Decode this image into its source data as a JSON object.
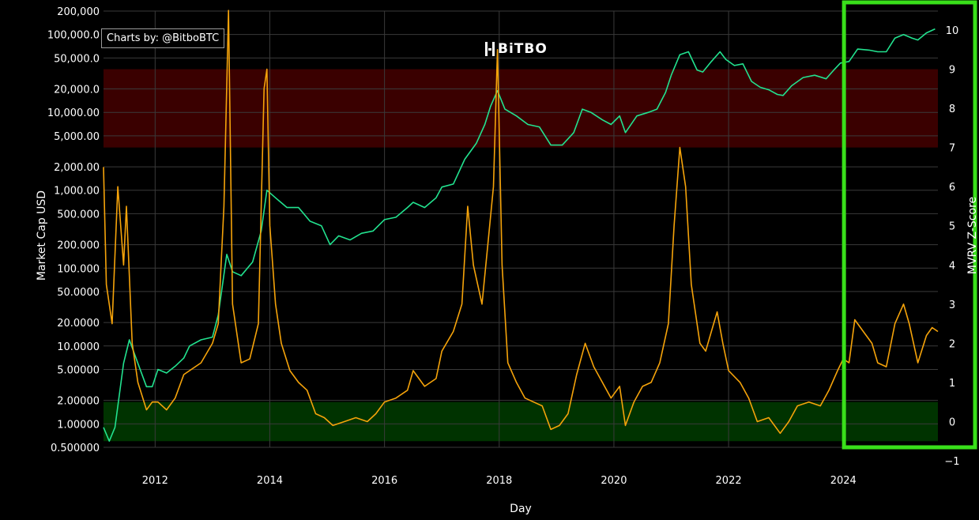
{
  "watermark": "Charts by: @BitboBTC",
  "brand": "BiTBO",
  "chart_data": {
    "type": "line",
    "xlabel": "Day",
    "ylabel_left": "Market Cap USD",
    "ylabel_right": "MVRV Z-Score",
    "y_left_scale": "log",
    "y_left_ticks": [
      "200,000",
      "100,000.0",
      "50,000.0",
      "20,000.0",
      "10,000.00",
      "5,000.00",
      "2,000.00",
      "1,000.00",
      "500.000",
      "200.000",
      "100.000",
      "50.0000",
      "20.0000",
      "10.0000",
      "5.00000",
      "2.00000",
      "1.00000",
      "0.500000"
    ],
    "y_right_ticks": [
      "10",
      "9",
      "8",
      "7",
      "6",
      "5",
      "4",
      "3",
      "2",
      "1",
      "0",
      "−1"
    ],
    "x_ticks": [
      "2012",
      "2014",
      "2016",
      "2018",
      "2020",
      "2022",
      "2024"
    ],
    "ylim_left": [
      0.5,
      200000
    ],
    "ylim_right": [
      -1,
      10.5
    ],
    "xlim": [
      2011.1,
      2025.65
    ],
    "grid": true,
    "zones": [
      {
        "name": "top",
        "y_right": [
          7,
          9
        ],
        "color": "#3a0000"
      },
      {
        "name": "bottom",
        "y_right": [
          -0.5,
          0.5
        ],
        "color": "#003300"
      }
    ],
    "highlight_box": {
      "x": [
        2024.15,
        2025.65
      ],
      "color": "#39e01a"
    },
    "series": [
      {
        "axis": "left",
        "color": "#22e28f",
        "points": [
          [
            2011.1,
            0.9
          ],
          [
            2011.2,
            0.6
          ],
          [
            2011.3,
            0.9
          ],
          [
            2011.45,
            6
          ],
          [
            2011.55,
            12
          ],
          [
            2011.7,
            6
          ],
          [
            2011.85,
            3
          ],
          [
            2011.95,
            3
          ],
          [
            2012.05,
            5
          ],
          [
            2012.2,
            4.5
          ],
          [
            2012.35,
            5.5
          ],
          [
            2012.5,
            7
          ],
          [
            2012.6,
            10
          ],
          [
            2012.8,
            12
          ],
          [
            2013.0,
            13
          ],
          [
            2013.1,
            25
          ],
          [
            2013.25,
            150
          ],
          [
            2013.35,
            90
          ],
          [
            2013.5,
            80
          ],
          [
            2013.7,
            120
          ],
          [
            2013.85,
            300
          ],
          [
            2013.95,
            1000
          ],
          [
            2014.1,
            800
          ],
          [
            2014.3,
            600
          ],
          [
            2014.5,
            600
          ],
          [
            2014.7,
            400
          ],
          [
            2014.9,
            350
          ],
          [
            2015.05,
            200
          ],
          [
            2015.2,
            260
          ],
          [
            2015.4,
            230
          ],
          [
            2015.6,
            280
          ],
          [
            2015.8,
            300
          ],
          [
            2016.0,
            420
          ],
          [
            2016.2,
            450
          ],
          [
            2016.4,
            600
          ],
          [
            2016.5,
            700
          ],
          [
            2016.7,
            600
          ],
          [
            2016.9,
            800
          ],
          [
            2017.0,
            1100
          ],
          [
            2017.2,
            1200
          ],
          [
            2017.4,
            2500
          ],
          [
            2017.6,
            4000
          ],
          [
            2017.75,
            7000
          ],
          [
            2017.85,
            12000
          ],
          [
            2017.97,
            19000
          ],
          [
            2018.1,
            11000
          ],
          [
            2018.3,
            9000
          ],
          [
            2018.5,
            7000
          ],
          [
            2018.7,
            6500
          ],
          [
            2018.9,
            3800
          ],
          [
            2019.1,
            3800
          ],
          [
            2019.3,
            5500
          ],
          [
            2019.45,
            11000
          ],
          [
            2019.6,
            10000
          ],
          [
            2019.8,
            8000
          ],
          [
            2019.95,
            7000
          ],
          [
            2020.1,
            9000
          ],
          [
            2020.2,
            5500
          ],
          [
            2020.4,
            9000
          ],
          [
            2020.6,
            10000
          ],
          [
            2020.75,
            11000
          ],
          [
            2020.9,
            18000
          ],
          [
            2021.0,
            30000
          ],
          [
            2021.15,
            55000
          ],
          [
            2021.3,
            60000
          ],
          [
            2021.45,
            35000
          ],
          [
            2021.55,
            33000
          ],
          [
            2021.7,
            45000
          ],
          [
            2021.85,
            60000
          ],
          [
            2021.95,
            48000
          ],
          [
            2022.1,
            40000
          ],
          [
            2022.25,
            42000
          ],
          [
            2022.4,
            25000
          ],
          [
            2022.55,
            21000
          ],
          [
            2022.7,
            19500
          ],
          [
            2022.85,
            17000
          ],
          [
            2022.95,
            16500
          ],
          [
            2023.1,
            22000
          ],
          [
            2023.3,
            28000
          ],
          [
            2023.5,
            30000
          ],
          [
            2023.7,
            27000
          ],
          [
            2023.85,
            36000
          ],
          [
            2023.95,
            43000
          ],
          [
            2024.1,
            45000
          ],
          [
            2024.25,
            65000
          ],
          [
            2024.45,
            63000
          ],
          [
            2024.6,
            60000
          ],
          [
            2024.75,
            60000
          ],
          [
            2024.9,
            90000
          ],
          [
            2025.05,
            100000
          ],
          [
            2025.2,
            90000
          ],
          [
            2025.3,
            85000
          ],
          [
            2025.45,
            105000
          ],
          [
            2025.6,
            118000
          ]
        ]
      },
      {
        "axis": "right",
        "color": "#f5a30a",
        "points": [
          [
            2011.1,
            6.5
          ],
          [
            2011.15,
            3.5
          ],
          [
            2011.25,
            2.5
          ],
          [
            2011.35,
            6.0
          ],
          [
            2011.45,
            4.0
          ],
          [
            2011.5,
            5.5
          ],
          [
            2011.6,
            2.0
          ],
          [
            2011.7,
            1.0
          ],
          [
            2011.85,
            0.3
          ],
          [
            2011.95,
            0.5
          ],
          [
            2012.05,
            0.5
          ],
          [
            2012.2,
            0.3
          ],
          [
            2012.35,
            0.6
          ],
          [
            2012.5,
            1.2
          ],
          [
            2012.6,
            1.3
          ],
          [
            2012.8,
            1.5
          ],
          [
            2013.0,
            2.0
          ],
          [
            2013.1,
            2.5
          ],
          [
            2013.2,
            5.5
          ],
          [
            2013.28,
            10.5
          ],
          [
            2013.35,
            3.0
          ],
          [
            2013.5,
            1.5
          ],
          [
            2013.65,
            1.6
          ],
          [
            2013.8,
            2.5
          ],
          [
            2013.9,
            8.5
          ],
          [
            2013.95,
            9.0
          ],
          [
            2014.0,
            5.0
          ],
          [
            2014.1,
            3.0
          ],
          [
            2014.2,
            2.0
          ],
          [
            2014.35,
            1.3
          ],
          [
            2014.5,
            1.0
          ],
          [
            2014.65,
            0.8
          ],
          [
            2014.8,
            0.2
          ],
          [
            2014.95,
            0.1
          ],
          [
            2015.1,
            -0.1
          ],
          [
            2015.3,
            0.0
          ],
          [
            2015.5,
            0.1
          ],
          [
            2015.7,
            0.0
          ],
          [
            2015.85,
            0.2
          ],
          [
            2016.0,
            0.5
          ],
          [
            2016.2,
            0.6
          ],
          [
            2016.4,
            0.8
          ],
          [
            2016.5,
            1.3
          ],
          [
            2016.7,
            0.9
          ],
          [
            2016.9,
            1.1
          ],
          [
            2017.0,
            1.8
          ],
          [
            2017.2,
            2.3
          ],
          [
            2017.35,
            3.0
          ],
          [
            2017.45,
            5.5
          ],
          [
            2017.55,
            4.0
          ],
          [
            2017.7,
            3.0
          ],
          [
            2017.8,
            4.5
          ],
          [
            2017.9,
            6.0
          ],
          [
            2017.97,
            9.5
          ],
          [
            2018.05,
            4.0
          ],
          [
            2018.15,
            1.5
          ],
          [
            2018.3,
            1.0
          ],
          [
            2018.45,
            0.6
          ],
          [
            2018.6,
            0.5
          ],
          [
            2018.75,
            0.4
          ],
          [
            2018.9,
            -0.2
          ],
          [
            2019.05,
            -0.1
          ],
          [
            2019.2,
            0.2
          ],
          [
            2019.35,
            1.2
          ],
          [
            2019.5,
            2.0
          ],
          [
            2019.65,
            1.4
          ],
          [
            2019.8,
            1.0
          ],
          [
            2019.95,
            0.6
          ],
          [
            2020.1,
            0.9
          ],
          [
            2020.2,
            -0.1
          ],
          [
            2020.35,
            0.5
          ],
          [
            2020.5,
            0.9
          ],
          [
            2020.65,
            1.0
          ],
          [
            2020.8,
            1.5
          ],
          [
            2020.95,
            2.5
          ],
          [
            2021.05,
            5.0
          ],
          [
            2021.15,
            7.0
          ],
          [
            2021.25,
            6.0
          ],
          [
            2021.35,
            3.5
          ],
          [
            2021.5,
            2.0
          ],
          [
            2021.6,
            1.8
          ],
          [
            2021.7,
            2.3
          ],
          [
            2021.8,
            2.8
          ],
          [
            2021.9,
            2.0
          ],
          [
            2022.0,
            1.3
          ],
          [
            2022.2,
            1.0
          ],
          [
            2022.35,
            0.6
          ],
          [
            2022.5,
            0.0
          ],
          [
            2022.7,
            0.1
          ],
          [
            2022.9,
            -0.3
          ],
          [
            2023.05,
            0.0
          ],
          [
            2023.2,
            0.4
          ],
          [
            2023.4,
            0.5
          ],
          [
            2023.6,
            0.4
          ],
          [
            2023.75,
            0.8
          ],
          [
            2023.9,
            1.3
          ],
          [
            2024.0,
            1.6
          ],
          [
            2024.1,
            1.5
          ],
          [
            2024.2,
            2.6
          ],
          [
            2024.35,
            2.3
          ],
          [
            2024.5,
            2.0
          ],
          [
            2024.6,
            1.5
          ],
          [
            2024.75,
            1.4
          ],
          [
            2024.9,
            2.5
          ],
          [
            2025.05,
            3.0
          ],
          [
            2025.15,
            2.5
          ],
          [
            2025.3,
            1.5
          ],
          [
            2025.45,
            2.2
          ],
          [
            2025.55,
            2.4
          ],
          [
            2025.65,
            2.3
          ]
        ]
      }
    ]
  }
}
